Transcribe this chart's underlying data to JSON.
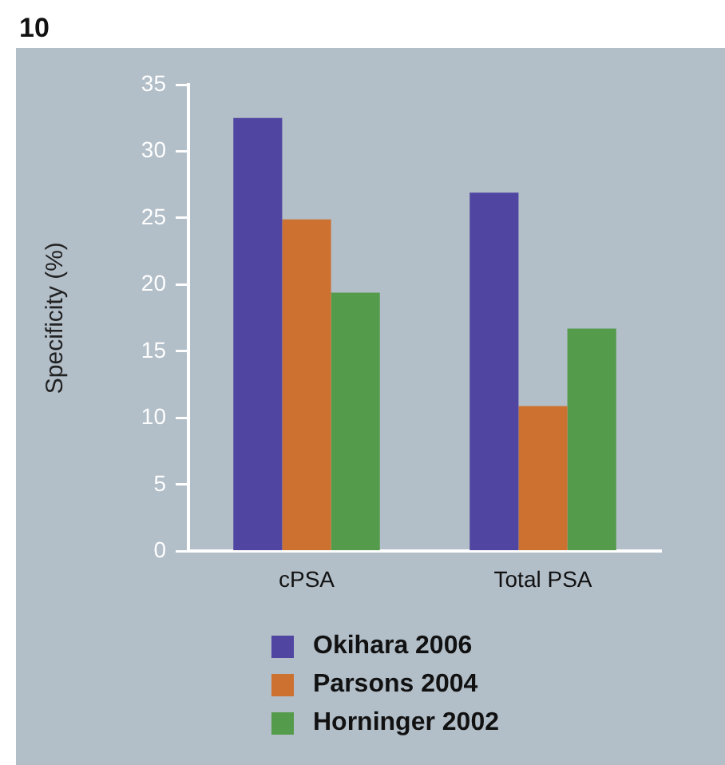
{
  "chart_data": {
    "type": "bar",
    "ylabel": "Specificity (%)",
    "annotations": [
      "10"
    ],
    "categories": [
      "cPSA",
      "Total PSA"
    ],
    "series": [
      {
        "name": "Okihara 2006",
        "color": "#5046a2",
        "values": [
          32.5,
          26.9
        ]
      },
      {
        "name": "Parsons 2004",
        "color": "#cd7131",
        "values": [
          24.9,
          10.9
        ]
      },
      {
        "name": "Horninger 2002",
        "color": "#559b4c",
        "values": [
          19.4,
          16.7
        ]
      }
    ],
    "ylim": [
      0,
      35
    ],
    "yticks": [
      0,
      5,
      10,
      15,
      20,
      25,
      30,
      35
    ],
    "grid": false,
    "legend": "bottom"
  }
}
